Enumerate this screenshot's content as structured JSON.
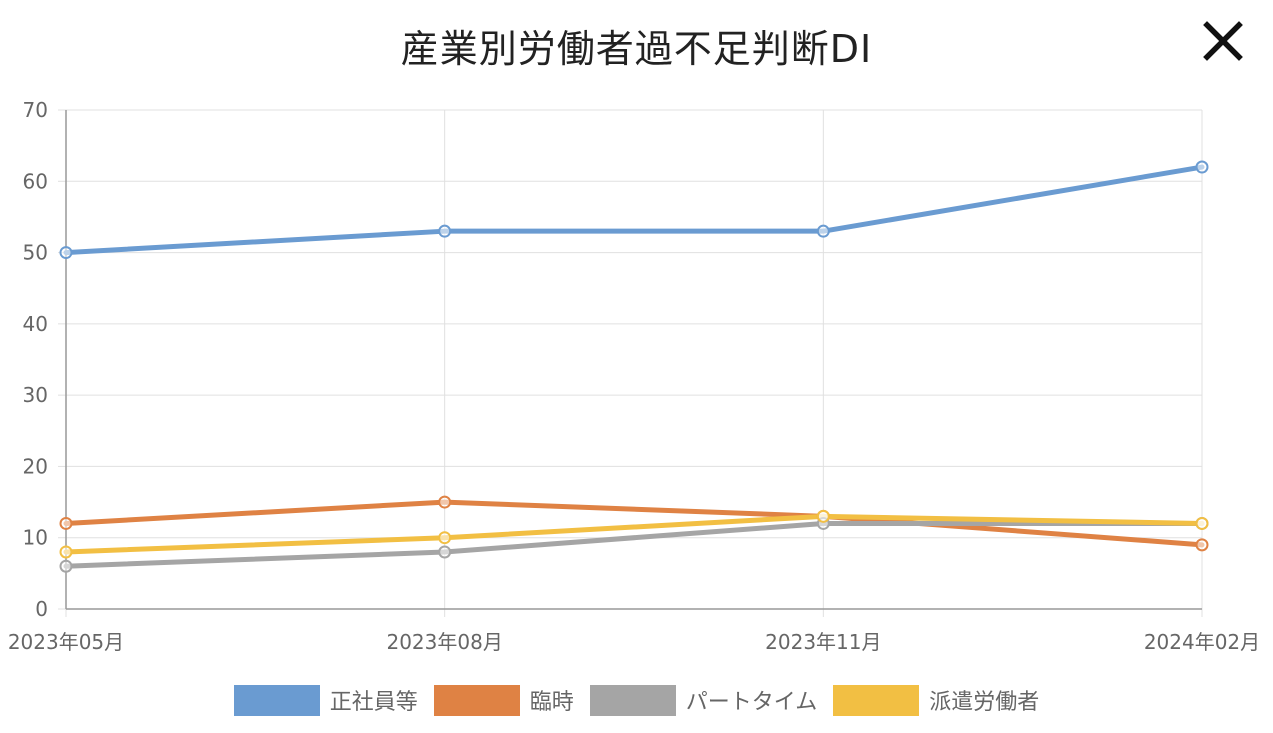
{
  "dialog": {
    "title": "産業別労働者過不足判断DI",
    "close_icon": "close-icon"
  },
  "colors": {
    "series": [
      "#6a9bd1",
      "#df8244",
      "#a5a5a5",
      "#f2bf43"
    ],
    "grid": "#e0e0e0",
    "axis": "#999999",
    "tick_text": "#666666"
  },
  "chart_data": {
    "type": "line",
    "title": "産業別労働者過不足判断DI",
    "xlabel": "",
    "ylabel": "",
    "categories": [
      "2023年05月",
      "2023年08月",
      "2023年11月",
      "2024年02月"
    ],
    "ylim": [
      0,
      70
    ],
    "yticks": [
      0,
      10,
      20,
      30,
      40,
      50,
      60,
      70
    ],
    "grid": true,
    "legend_position": "bottom",
    "series": [
      {
        "name": "正社員等",
        "values": [
          50,
          53,
          53,
          62
        ]
      },
      {
        "name": "臨時",
        "values": [
          12,
          15,
          13,
          9
        ]
      },
      {
        "name": "パートタイム",
        "values": [
          6,
          8,
          12,
          12
        ]
      },
      {
        "name": "派遣労働者",
        "values": [
          8,
          10,
          13,
          12
        ]
      }
    ]
  }
}
